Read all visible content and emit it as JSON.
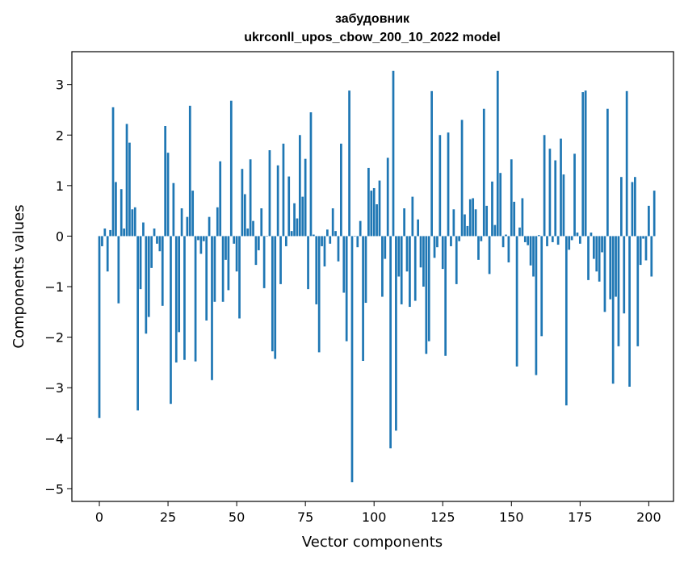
{
  "chart_data": {
    "type": "bar",
    "title": "забудовник",
    "subtitle": "ukrconll_upos_cbow_200_10_2022 model",
    "xlabel": "Vector components",
    "ylabel": "Components values",
    "xlim": [
      -10,
      209
    ],
    "ylim": [
      -5.25,
      3.65
    ],
    "xticks": [
      0,
      25,
      50,
      75,
      100,
      125,
      150,
      175,
      200
    ],
    "yticks": [
      -5,
      -4,
      -3,
      -2,
      -1,
      0,
      1,
      2,
      3
    ],
    "ytick_labels": [
      "−5",
      "−4",
      "−3",
      "−2",
      "−1",
      "0",
      "1",
      "2",
      "3"
    ],
    "bar_color": "#1f77b4",
    "grid": false,
    "values": [
      -3.6,
      -0.2,
      0.15,
      -0.7,
      0.12,
      2.55,
      1.07,
      -1.33,
      0.93,
      0.15,
      2.22,
      1.85,
      0.53,
      0.57,
      -3.45,
      -1.05,
      0.27,
      -1.93,
      -1.6,
      -0.63,
      0.15,
      -0.15,
      -0.3,
      -1.38,
      2.18,
      1.65,
      -3.32,
      1.05,
      -2.5,
      -1.9,
      0.55,
      -2.45,
      0.38,
      2.58,
      0.9,
      -2.48,
      -0.08,
      -0.35,
      -0.1,
      -1.67,
      0.38,
      -2.85,
      -1.3,
      0.57,
      1.48,
      -1.3,
      -0.47,
      -1.07,
      2.68,
      -0.15,
      -0.7,
      -1.63,
      1.33,
      0.83,
      0.15,
      1.52,
      0.3,
      -0.57,
      -0.28,
      0.55,
      -1.03,
      0.0,
      1.7,
      -2.28,
      -2.43,
      1.4,
      -0.95,
      1.83,
      -0.2,
      1.18,
      0.1,
      0.65,
      0.35,
      2.0,
      0.78,
      1.53,
      -1.05,
      2.45,
      0.03,
      -1.35,
      -2.3,
      -0.2,
      -0.6,
      0.13,
      -0.15,
      0.55,
      0.1,
      -0.5,
      1.83,
      -1.12,
      -2.08,
      2.88,
      -4.87,
      0.0,
      -0.22,
      0.3,
      -2.47,
      -1.32,
      1.35,
      0.9,
      0.95,
      0.63,
      1.1,
      -1.2,
      -0.45,
      1.55,
      -4.2,
      3.27,
      -3.85,
      -0.8,
      -1.35,
      0.55,
      -0.7,
      -1.4,
      0.78,
      -1.28,
      0.33,
      -0.62,
      -1.0,
      -2.33,
      -2.08,
      2.87,
      -0.43,
      -0.22,
      2.0,
      -0.65,
      -2.37,
      2.05,
      -0.2,
      0.53,
      -0.95,
      -0.1,
      2.3,
      0.43,
      0.2,
      0.73,
      0.75,
      0.53,
      -0.47,
      -0.1,
      2.52,
      0.6,
      -0.75,
      1.08,
      0.22,
      3.27,
      1.25,
      -0.22,
      0.03,
      -0.52,
      1.52,
      0.68,
      -2.58,
      0.17,
      0.75,
      -0.12,
      -0.18,
      -0.58,
      -0.8,
      -2.75,
      0.02,
      -1.98,
      2.0,
      -0.2,
      1.73,
      -0.12,
      1.5,
      -0.17,
      1.93,
      1.22,
      -3.35,
      -0.27,
      -0.08,
      1.63,
      0.07,
      -0.15,
      2.85,
      2.88,
      -0.87,
      0.07,
      -0.45,
      -0.7,
      -0.9,
      -0.32,
      -1.5,
      2.52,
      -1.25,
      -2.92,
      -1.2,
      -2.18,
      1.17,
      -1.53,
      2.87,
      -2.98,
      1.07,
      1.17,
      -2.18,
      -0.57,
      -0.05,
      -0.48,
      0.6,
      -0.8,
      0.9
    ]
  }
}
